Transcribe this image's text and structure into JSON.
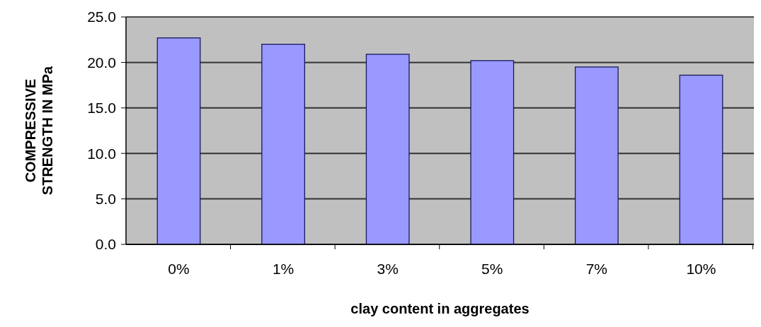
{
  "chart_data": {
    "type": "bar",
    "xlabel": "clay content in aggregates",
    "ylabel": "COMPRESSIVE STRENGTH IN MPa",
    "categories": [
      "0%",
      "1%",
      "3%",
      "5%",
      "7%",
      "10%"
    ],
    "values": [
      22.7,
      22.0,
      20.9,
      20.2,
      19.5,
      18.6
    ],
    "color": "#9999ff",
    "ylim": [
      0,
      25
    ],
    "yticks": [
      {
        "value": 0,
        "label": "0.0"
      },
      {
        "value": 5,
        "label": "5.0"
      },
      {
        "value": 10,
        "label": "10.0"
      },
      {
        "value": 15,
        "label": "15.0"
      },
      {
        "value": 20,
        "label": "20.0"
      },
      {
        "value": 25,
        "label": "25.0"
      }
    ],
    "grid": "y"
  }
}
